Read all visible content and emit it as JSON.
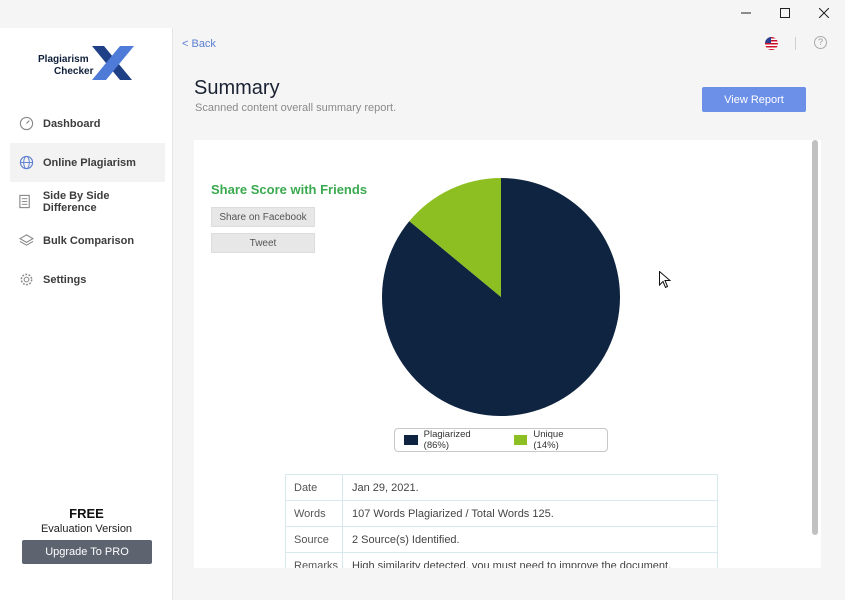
{
  "window": {
    "minimize_icon": "minimize-icon",
    "maximize_icon": "maximize-icon",
    "close_icon": "close-icon"
  },
  "logo": {
    "line1": "Plagiarism",
    "line2": "Checker",
    "mark": "X"
  },
  "sidebar": {
    "items": [
      {
        "label": "Dashboard",
        "icon": "dashboard-icon"
      },
      {
        "label": "Online Plagiarism",
        "icon": "globe-icon",
        "active": true
      },
      {
        "label": "Side By Side Difference",
        "icon": "document-compare-icon"
      },
      {
        "label": "Bulk Comparison",
        "icon": "layers-icon"
      },
      {
        "label": "Settings",
        "icon": "gear-icon"
      }
    ],
    "free_title": "FREE",
    "free_sub": "Evaluation Version",
    "upgrade_label": "Upgrade To PRO"
  },
  "topbar": {
    "back_label": "< Back",
    "flag_icon": "us-flag-icon",
    "help_label": "?"
  },
  "header": {
    "title": "Summary",
    "subtitle": "Scanned content overall summary report.",
    "view_report_label": "View Report"
  },
  "share": {
    "title": "Share Score with Friends",
    "facebook_label": "Share on Facebook",
    "tweet_label": "Tweet"
  },
  "chart_data": {
    "type": "pie",
    "slices": [
      {
        "label": "Plagiarized (86%)",
        "value": 86,
        "color": "#0f2440"
      },
      {
        "label": "Unique (14%)",
        "value": 14,
        "color": "#8dbf22"
      }
    ],
    "legend_position": "bottom"
  },
  "details": {
    "rows": [
      {
        "key": "Date",
        "value": "Jan 29, 2021."
      },
      {
        "key": "Words",
        "value": "107 Words Plagiarized / Total Words 125."
      },
      {
        "key": "Source",
        "value": "2 Source(s) Identified."
      },
      {
        "key": "Remarks",
        "value": "High similarity detected, you must need to improve the document."
      }
    ]
  }
}
